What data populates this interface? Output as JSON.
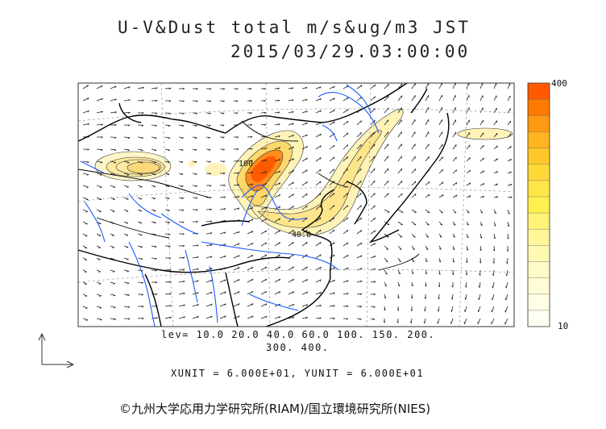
{
  "title": {
    "line1": "U-V&Dust total m/s&ug/m3 JST",
    "line2": "2015/03/29.03:00:00"
  },
  "levels": {
    "line1": "lev= 10.0 20.0 40.0 60.0 100. 150. 200.",
    "line2": "300. 400."
  },
  "units": "XUNIT = 6.000E+01, YUNIT = 6.000E+01",
  "credit": "©九州大学応用力学研究所(RIAM)/国立環境研究所(NIES)",
  "colorbar": {
    "max_label": "400",
    "min_label": "10",
    "colors": [
      "#ff5a00",
      "#ff7a00",
      "#ff9a10",
      "#ffb420",
      "#ffc828",
      "#ffd838",
      "#ffe648",
      "#fff050",
      "#fff478",
      "#fff79a",
      "#fff9b4",
      "#fffbc8",
      "#fffcd8",
      "#fffde6",
      "#fffef2"
    ]
  },
  "contour_labels": [
    "100",
    "40.0"
  ],
  "colors": {
    "coastline": "#000000",
    "rivers": "#1a5cff",
    "frame": "#333333"
  },
  "icons": [
    "axis-arrows-icon"
  ]
}
